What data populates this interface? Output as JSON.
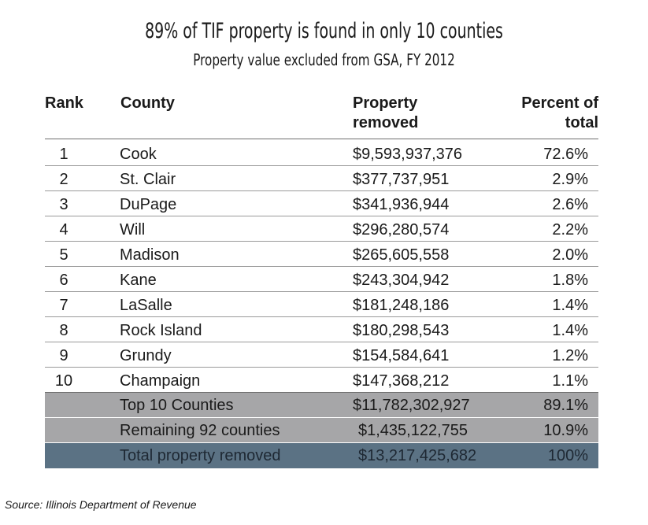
{
  "title": "89% of TIF property is found in only 10 counties",
  "subtitle": "Property value excluded from GSA, FY 2012",
  "columns": {
    "rank": "Rank",
    "county": "County",
    "property_line1": "Property",
    "property_line2": "removed",
    "percent_line1": "Percent of",
    "percent_line2": "total"
  },
  "rows": [
    {
      "rank": "1",
      "county": "Cook",
      "property": "$9,593,937,376",
      "percent": "72.6%"
    },
    {
      "rank": "2",
      "county": "St. Clair",
      "property": "$377,737,951",
      "percent": "2.9%"
    },
    {
      "rank": "3",
      "county": "DuPage",
      "property": "$341,936,944",
      "percent": "2.6%"
    },
    {
      "rank": "4",
      "county": "Will",
      "property": "$296,280,574",
      "percent": "2.2%"
    },
    {
      "rank": "5",
      "county": "Madison",
      "property": "$265,605,558",
      "percent": "2.0%"
    },
    {
      "rank": "6",
      "county": "Kane",
      "property": "$243,304,942",
      "percent": "1.8%"
    },
    {
      "rank": "7",
      "county": "LaSalle",
      "property": "$181,248,186",
      "percent": "1.4%"
    },
    {
      "rank": "8",
      "county": "Rock Island",
      "property": "$180,298,543",
      "percent": "1.4%"
    },
    {
      "rank": "9",
      "county": "Grundy",
      "property": "$154,584,641",
      "percent": "1.2%"
    },
    {
      "rank": "10",
      "county": "Champaign",
      "property": "$147,368,212",
      "percent": "1.1%"
    }
  ],
  "summary": [
    {
      "label": "Top 10 Counties",
      "property": "$11,782,302,927",
      "percent": "89.1%"
    },
    {
      "label": "Remaining 92 counties",
      "property": "$1,435,122,755",
      "percent": "10.9%"
    },
    {
      "label": "Total property removed",
      "property": "$13,217,425,682",
      "percent": "100%"
    }
  ],
  "colors": {
    "summary_gray": "#a6a6a8",
    "total_blue": "#5b7284"
  },
  "source": "Source: Illinois Department of Revenue"
}
